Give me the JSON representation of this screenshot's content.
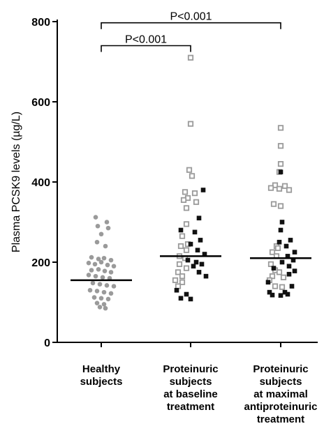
{
  "chart_data": {
    "type": "scatter",
    "ylabel": "Plasma PCSK9 levels (µg/L)",
    "ylim": [
      0,
      800
    ],
    "yticks": [
      0,
      200,
      400,
      600,
      800
    ],
    "categories": [
      [
        "Healthy",
        "subjects"
      ],
      [
        "Proteinuric",
        "subjects",
        "at baseline",
        "treatment"
      ],
      [
        "Proteinuric",
        "subjects",
        "at maximal",
        "antiproteinuric",
        "treatment"
      ]
    ],
    "medians": [
      155,
      215,
      210
    ],
    "series": [
      {
        "group": 0,
        "marker": "circle",
        "color": "#9a9a9a",
        "points": [
          [
            -8,
            312
          ],
          [
            8,
            300
          ],
          [
            -5,
            290
          ],
          [
            10,
            285
          ],
          [
            0,
            270
          ],
          [
            -6,
            250
          ],
          [
            6,
            240
          ],
          [
            -14,
            212
          ],
          [
            -4,
            208
          ],
          [
            4,
            210
          ],
          [
            14,
            205
          ],
          [
            -18,
            198
          ],
          [
            -9,
            195
          ],
          [
            0,
            200
          ],
          [
            9,
            193
          ],
          [
            18,
            190
          ],
          [
            -14,
            180
          ],
          [
            -4,
            182
          ],
          [
            5,
            178
          ],
          [
            14,
            175
          ],
          [
            -18,
            168
          ],
          [
            -8,
            165
          ],
          [
            2,
            162
          ],
          [
            12,
            160
          ],
          [
            -12,
            148
          ],
          [
            -2,
            145
          ],
          [
            8,
            142
          ],
          [
            18,
            140
          ],
          [
            -16,
            130
          ],
          [
            -6,
            128
          ],
          [
            4,
            125
          ],
          [
            14,
            122
          ],
          [
            -10,
            112
          ],
          [
            0,
            110
          ],
          [
            10,
            108
          ],
          [
            -6,
            98
          ],
          [
            4,
            95
          ],
          [
            -2,
            88
          ],
          [
            6,
            85
          ]
        ]
      },
      {
        "group": 1,
        "marker": "open-square",
        "color": "#9a9a9a",
        "points": [
          [
            0,
            710
          ],
          [
            0,
            545
          ],
          [
            -2,
            430
          ],
          [
            2,
            415
          ],
          [
            -8,
            375
          ],
          [
            6,
            372
          ],
          [
            -4,
            360
          ],
          [
            -10,
            355
          ],
          [
            8,
            350
          ],
          [
            -6,
            335
          ],
          [
            -6,
            295
          ],
          [
            -12,
            265
          ],
          [
            -4,
            245
          ],
          [
            -14,
            240
          ],
          [
            -6,
            230
          ],
          [
            -16,
            215
          ],
          [
            -8,
            210
          ],
          [
            -16,
            195
          ],
          [
            -6,
            185
          ],
          [
            -18,
            175
          ],
          [
            -12,
            165
          ],
          [
            -22,
            155
          ],
          [
            -12,
            150
          ],
          [
            -18,
            140
          ]
        ]
      },
      {
        "group": 1,
        "marker": "filled-square",
        "color": "#111111",
        "points": [
          [
            18,
            380
          ],
          [
            12,
            310
          ],
          [
            -14,
            280
          ],
          [
            6,
            275
          ],
          [
            14,
            255
          ],
          [
            0,
            245
          ],
          [
            10,
            230
          ],
          [
            20,
            220
          ],
          [
            -4,
            205
          ],
          [
            8,
            200
          ],
          [
            16,
            195
          ],
          [
            4,
            190
          ],
          [
            12,
            175
          ],
          [
            22,
            165
          ],
          [
            -20,
            130
          ],
          [
            -6,
            120
          ],
          [
            -14,
            110
          ],
          [
            0,
            108
          ]
        ]
      },
      {
        "group": 2,
        "marker": "open-square",
        "color": "#9a9a9a",
        "points": [
          [
            0,
            535
          ],
          [
            0,
            490
          ],
          [
            0,
            445
          ],
          [
            -2,
            425
          ],
          [
            -8,
            392
          ],
          [
            6,
            390
          ],
          [
            -14,
            385
          ],
          [
            -2,
            383
          ],
          [
            12,
            380
          ],
          [
            -10,
            345
          ],
          [
            0,
            340
          ],
          [
            -6,
            240
          ],
          [
            -4,
            235
          ],
          [
            -12,
            225
          ],
          [
            -6,
            215
          ],
          [
            -14,
            195
          ],
          [
            -8,
            180
          ],
          [
            -2,
            175
          ],
          [
            -12,
            165
          ],
          [
            4,
            162
          ],
          [
            -16,
            155
          ],
          [
            -8,
            140
          ],
          [
            2,
            138
          ]
        ]
      },
      {
        "group": 2,
        "marker": "filled-square",
        "color": "#111111",
        "points": [
          [
            0,
            425
          ],
          [
            2,
            300
          ],
          [
            0,
            280
          ],
          [
            14,
            255
          ],
          [
            -2,
            250
          ],
          [
            8,
            240
          ],
          [
            20,
            225
          ],
          [
            10,
            215
          ],
          [
            18,
            205
          ],
          [
            2,
            200
          ],
          [
            12,
            190
          ],
          [
            -10,
            185
          ],
          [
            20,
            178
          ],
          [
            12,
            170
          ],
          [
            -18,
            150
          ],
          [
            16,
            140
          ],
          [
            -16,
            125
          ],
          [
            6,
            125
          ],
          [
            -12,
            118
          ],
          [
            0,
            117
          ],
          [
            10,
            120
          ]
        ]
      }
    ],
    "comparisons": [
      {
        "from": 0,
        "to": 1,
        "label": "P<0.001",
        "y": 740
      },
      {
        "from": 0,
        "to": 2,
        "label": "P<0.001",
        "y": 797
      }
    ]
  }
}
